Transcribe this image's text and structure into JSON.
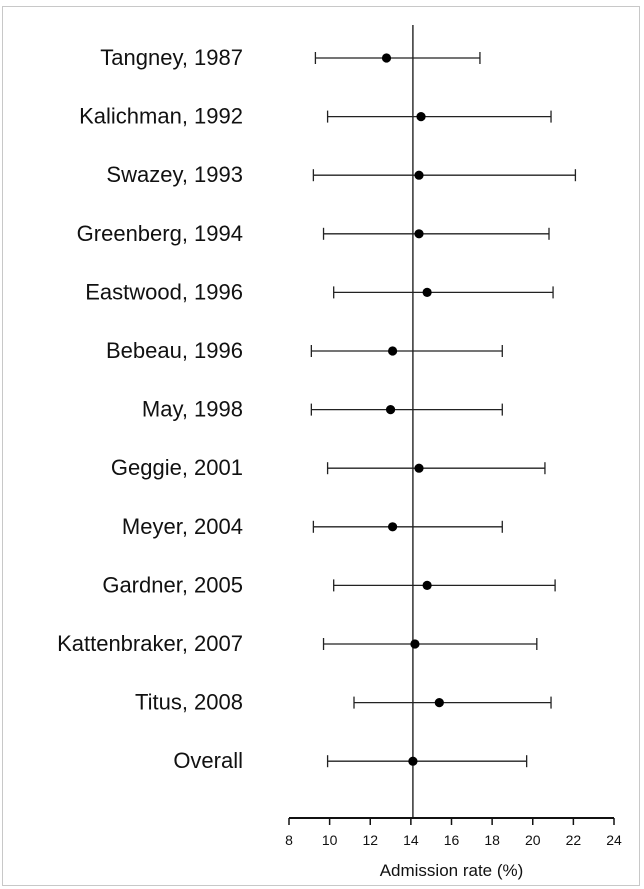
{
  "chart_data": {
    "type": "forest",
    "xlabel": "Admission rate (%)",
    "xlim": [
      8,
      24
    ],
    "xticks": [
      8,
      10,
      12,
      14,
      16,
      18,
      20,
      22,
      24
    ],
    "reference_line": 14.1,
    "studies": [
      {
        "label": "Tangney, 1987",
        "estimate": 12.8,
        "lower": 9.3,
        "upper": 17.4
      },
      {
        "label": "Kalichman, 1992",
        "estimate": 14.5,
        "lower": 9.9,
        "upper": 20.9
      },
      {
        "label": "Swazey, 1993",
        "estimate": 14.4,
        "lower": 9.2,
        "upper": 22.1
      },
      {
        "label": "Greenberg, 1994",
        "estimate": 14.4,
        "lower": 9.7,
        "upper": 20.8
      },
      {
        "label": "Eastwood, 1996",
        "estimate": 14.8,
        "lower": 10.2,
        "upper": 21.0
      },
      {
        "label": "Bebeau, 1996",
        "estimate": 13.1,
        "lower": 9.1,
        "upper": 18.5
      },
      {
        "label": "May, 1998",
        "estimate": 13.0,
        "lower": 9.1,
        "upper": 18.5
      },
      {
        "label": "Geggie, 2001",
        "estimate": 14.4,
        "lower": 9.9,
        "upper": 20.6
      },
      {
        "label": "Meyer, 2004",
        "estimate": 13.1,
        "lower": 9.2,
        "upper": 18.5
      },
      {
        "label": "Gardner, 2005",
        "estimate": 14.8,
        "lower": 10.2,
        "upper": 21.1
      },
      {
        "label": "Kattenbraker, 2007",
        "estimate": 14.2,
        "lower": 9.7,
        "upper": 20.2
      },
      {
        "label": "Titus, 2008",
        "estimate": 15.4,
        "lower": 11.2,
        "upper": 20.9
      },
      {
        "label": "Overall",
        "estimate": 14.1,
        "lower": 9.9,
        "upper": 19.7
      }
    ]
  }
}
